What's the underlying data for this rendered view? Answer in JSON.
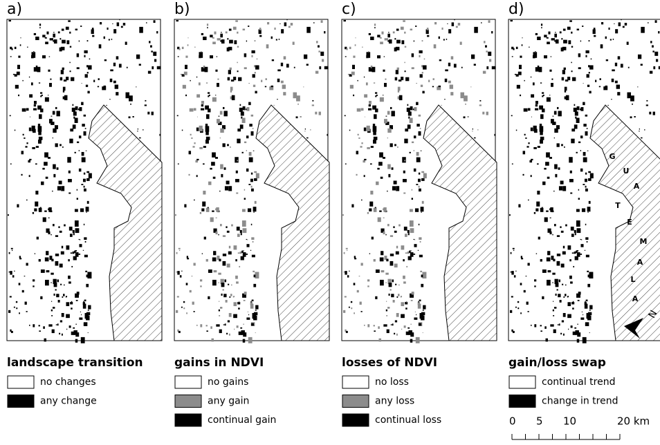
{
  "panels": [
    {
      "label": "a)",
      "legend_title": "landscape transition",
      "legend_items": [
        {
          "label": "no changes",
          "color": "#ffffff"
        },
        {
          "label": "any change",
          "color": "#000000"
        }
      ]
    },
    {
      "label": "b)",
      "legend_title": "gains in NDVI",
      "legend_items": [
        {
          "label": "no gains",
          "color": "#ffffff"
        },
        {
          "label": "any gain",
          "color": "#8c8c8c"
        },
        {
          "label": "continual gain",
          "color": "#000000"
        }
      ]
    },
    {
      "label": "c)",
      "legend_title": "losses of NDVI",
      "legend_items": [
        {
          "label": "no loss",
          "color": "#ffffff"
        },
        {
          "label": "any loss",
          "color": "#8c8c8c"
        },
        {
          "label": "continual loss",
          "color": "#000000"
        }
      ]
    },
    {
      "label": "d)",
      "legend_title": "gain/loss swap",
      "legend_items": [
        {
          "label": "continual trend",
          "color": "#ffffff"
        },
        {
          "label": "change in trend",
          "color": "#000000"
        }
      ]
    }
  ],
  "country_label": [
    "G",
    "U",
    "A",
    "T",
    "E",
    "M",
    "A",
    "L",
    "A"
  ],
  "north": "N",
  "scale": {
    "labels": [
      "0",
      "5",
      "10",
      "20 km"
    ]
  }
}
